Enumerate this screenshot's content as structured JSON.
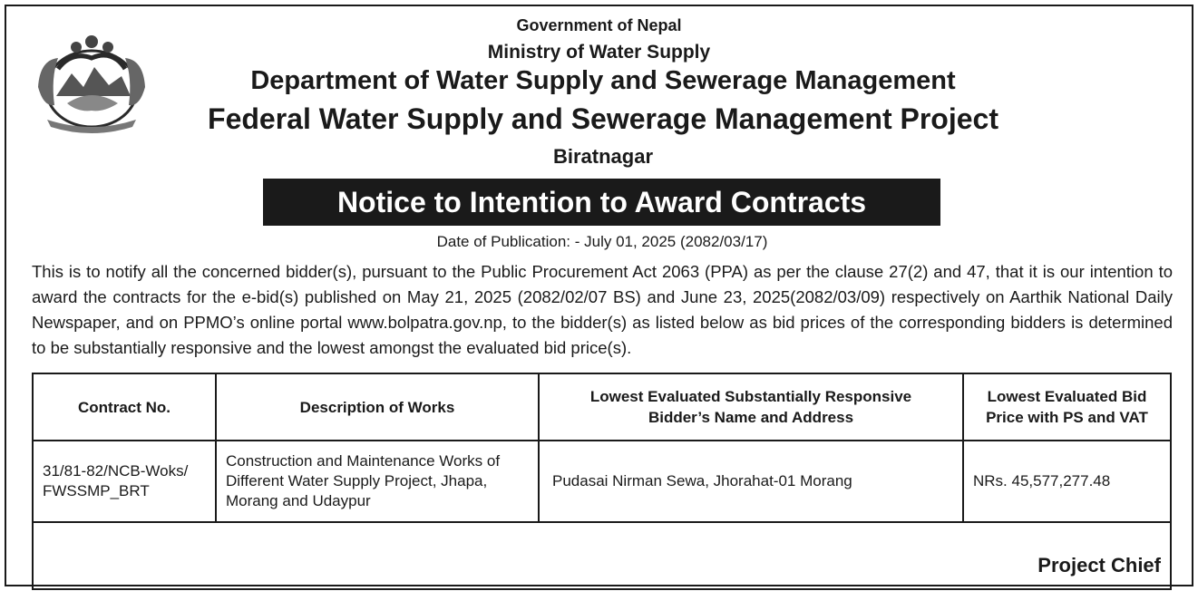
{
  "header": {
    "line1": "Government of Nepal",
    "line2": "Ministry of Water Supply",
    "line3": "Department of Water Supply and Sewerage Management",
    "line4": "Federal Water Supply and Sewerage Management Project",
    "line5": "Biratnagar"
  },
  "notice_title": "Notice to Intention to Award Contracts",
  "publication_date": "Date of Publication: - July 01, 2025 (2082/03/17)",
  "body_text": "This is to notify all the concerned bidder(s), pursuant to the Public Procurement Act 2063 (PPA) as per the clause 27(2) and 47, that it is our intention to award the contracts for the e-bid(s) published on May 21, 2025 (2082/02/07 BS) and June 23, 2025(2082/03/09) respectively on Aarthik National Daily Newspaper, and on PPMO’s online portal www.bolpatra.gov.np, to the bidder(s) as listed below as bid prices of the corresponding bidders is determined to be substantially responsive and the lowest amongst the evaluated bid price(s).",
  "table": {
    "headers": {
      "contract_no": "Contract No.",
      "description": "Description of Works",
      "bidder_line1": "Lowest Evaluated Substantially Responsive",
      "bidder_line2": "Bidder’s Name and Address",
      "price_line1": "Lowest Evaluated Bid",
      "price_line2": "Price with PS and VAT"
    },
    "rows": [
      {
        "contract_no_line1": "31/81-82/NCB-Woks/",
        "contract_no_line2": "FWSSMP_BRT",
        "description": "Construction and Maintenance Works of Different Water Supply Project, Jhapa, Morang and Udaypur",
        "bidder": "Pudasai Nirman Sewa, Jhorahat-01 Morang",
        "price": "NRs. 45,577,277.48"
      }
    ]
  },
  "signature": "Project Chief",
  "colors": {
    "ink": "#1a1a1a",
    "banner_bg": "#1a1a1a",
    "banner_text": "#ffffff"
  },
  "emblem_icon": "nepal-coat-of-arms-icon"
}
